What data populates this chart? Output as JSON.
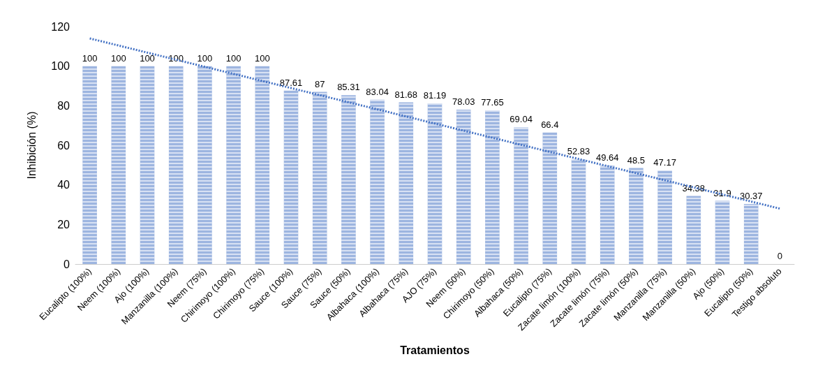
{
  "chart_data": {
    "type": "bar",
    "xlabel": "Tratamientos",
    "ylabel": "Inhibición (%)",
    "categories": [
      "Eucalipto (100%)",
      "Neem (100%)",
      "Ajo (100%)",
      "Manzanilla (100%)",
      "Neem (75%)",
      "Chirimoyo (100%)",
      "Chirimoyo (75%)",
      "Sauce (100%)",
      "Sauce (75%)",
      "Sauce (50%)",
      "Albahaca (100%)",
      "Albahaca (75%)",
      "AJO (75%)",
      "Neem (50%)",
      "Chirimoyo (50%)",
      "Albahaca (50%)",
      "Eucalipto (75%)",
      "Zacate limón (100%)",
      "Zacate limón (75%)",
      "Zacate limón (50%)",
      "Manzanilla (75%)",
      "Manzanilla (50%)",
      "Ajo (50%)",
      "Eucalipto (50%)",
      "Testigo absoluto"
    ],
    "series": [
      {
        "color": "#9db5e0",
        "data_labels": true,
        "values": [
          100,
          100,
          100,
          100,
          100,
          100,
          100,
          87.61,
          87,
          85.31,
          83.04,
          81.68,
          81.19,
          78.03,
          77.65,
          69.04,
          66.4,
          52.83,
          49.64,
          48.5,
          47.17,
          34.38,
          31.9,
          30.37,
          0
        ]
      },
      {
        "type": "line",
        "color": "#4472c4",
        "line_style": "dotted",
        "x": [
          "Eucalipto (100%)",
          "Testigo absoluto"
        ],
        "values": [
          114,
          28
        ]
      }
    ],
    "ylim": [
      0,
      120
    ],
    "yticks": [
      0,
      20,
      40,
      60,
      80,
      100,
      120
    ],
    "grid": false
  }
}
